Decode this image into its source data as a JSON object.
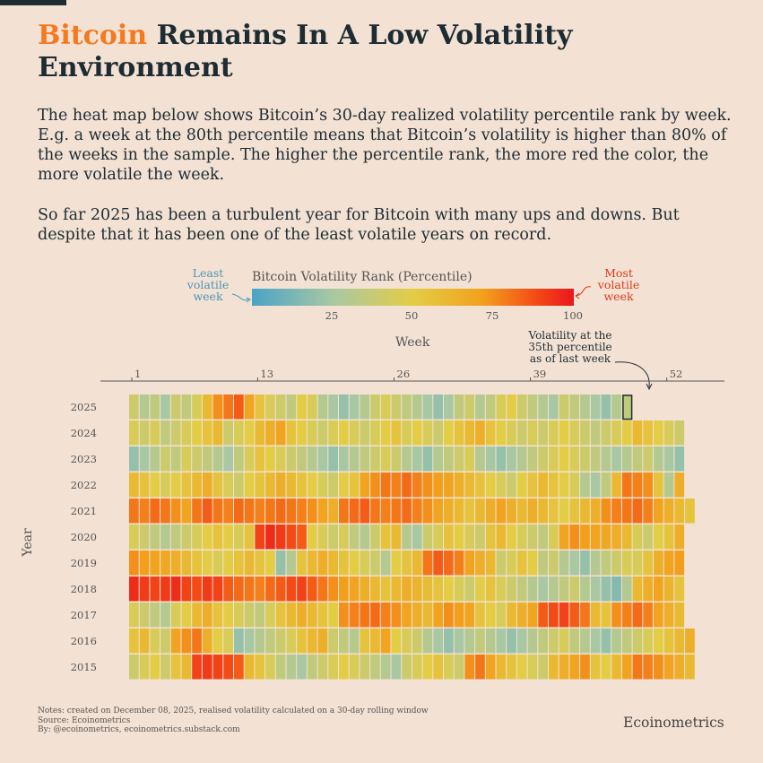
{
  "header": {
    "title_highlight": "Bitcoin",
    "title_rest": "Remains In A Low Volatility Environment",
    "description_1": "The heat map below shows Bitcoin’s 30-day realized volatility percentile rank by week. E.g. a week at the 80th percentile means that Bitcoin’s volatility is higher than 80% of the weeks in the sample. The higher the percentile rank, the more red the color, the more volatile the week.",
    "description_2": "So far 2025 has been a turbulent year for Bitcoin with many ups and downs. But despite that it has been one of the least volatile years on record.",
    "highlight_color": "#f47a1f"
  },
  "legend": {
    "title": "Bitcoin Volatility Rank (Percentile)",
    "ticks": [
      "25",
      "50",
      "75",
      "100"
    ],
    "least_label": "Least volatile week",
    "most_label": "Most volatile week",
    "low_color": "#4aa3c7",
    "high_color": "#e8171b"
  },
  "annotation": {
    "text": "Volatility at the 35th percentile as of last week",
    "week": 48,
    "year": "2025",
    "value": 35
  },
  "chart_data": {
    "type": "heatmap",
    "xlabel": "Week",
    "ylabel": "Year",
    "x_ticks": [
      1,
      13,
      26,
      39,
      52
    ],
    "x_range": [
      1,
      53
    ],
    "value_range": [
      0,
      100
    ],
    "years": [
      "2025",
      "2024",
      "2023",
      "2022",
      "2021",
      "2020",
      "2019",
      "2018",
      "2017",
      "2016",
      "2015"
    ],
    "weeks_available": [
      48,
      53,
      53,
      53,
      54,
      53,
      53,
      53,
      53,
      54,
      54
    ],
    "values": [
      [
        40,
        30,
        35,
        25,
        40,
        35,
        45,
        60,
        75,
        80,
        85,
        70,
        55,
        45,
        40,
        35,
        50,
        45,
        30,
        25,
        20,
        25,
        30,
        40,
        45,
        40,
        35,
        30,
        25,
        20,
        25,
        35,
        40,
        30,
        35,
        45,
        50,
        40,
        35,
        30,
        25,
        40,
        35,
        30,
        25,
        20,
        30,
        35
      ],
      [
        45,
        40,
        45,
        35,
        40,
        45,
        50,
        55,
        60,
        40,
        45,
        50,
        60,
        65,
        70,
        55,
        50,
        45,
        40,
        45,
        50,
        45,
        40,
        45,
        50,
        55,
        45,
        50,
        45,
        40,
        50,
        55,
        60,
        65,
        55,
        50,
        45,
        40,
        45,
        40,
        45,
        50,
        45,
        40,
        35,
        40,
        45,
        50,
        60,
        55,
        50,
        45,
        40
      ],
      [
        20,
        25,
        30,
        40,
        35,
        45,
        40,
        35,
        30,
        25,
        35,
        45,
        55,
        50,
        45,
        40,
        35,
        30,
        25,
        20,
        25,
        30,
        35,
        40,
        45,
        40,
        30,
        25,
        20,
        30,
        35,
        40,
        45,
        30,
        25,
        20,
        25,
        30,
        35,
        40,
        45,
        50,
        45,
        40,
        35,
        30,
        25,
        30,
        35,
        40,
        30,
        25,
        20
      ],
      [
        60,
        55,
        50,
        45,
        50,
        55,
        60,
        65,
        55,
        45,
        40,
        50,
        55,
        60,
        65,
        60,
        55,
        50,
        45,
        40,
        50,
        55,
        70,
        75,
        80,
        78,
        82,
        78,
        75,
        72,
        70,
        65,
        60,
        55,
        50,
        45,
        40,
        50,
        55,
        60,
        55,
        50,
        45,
        30,
        25,
        35,
        60,
        80,
        78,
        75,
        55,
        30,
        65
      ],
      [
        80,
        78,
        82,
        80,
        75,
        70,
        80,
        85,
        80,
        78,
        82,
        80,
        78,
        80,
        82,
        80,
        78,
        75,
        70,
        65,
        80,
        82,
        85,
        80,
        78,
        80,
        82,
        78,
        75,
        70,
        65,
        60,
        55,
        60,
        65,
        70,
        65,
        60,
        65,
        60,
        55,
        50,
        55,
        60,
        65,
        75,
        78,
        80,
        82,
        78,
        70,
        65,
        60,
        55
      ],
      [
        45,
        40,
        35,
        30,
        35,
        40,
        45,
        50,
        55,
        50,
        45,
        55,
        90,
        95,
        92,
        88,
        85,
        50,
        45,
        40,
        45,
        35,
        30,
        40,
        55,
        60,
        30,
        25,
        40,
        45,
        55,
        50,
        45,
        40,
        55,
        60,
        50,
        45,
        40,
        35,
        45,
        70,
        75,
        72,
        70,
        68,
        65,
        60,
        45,
        40,
        50,
        55,
        65
      ],
      [
        75,
        72,
        70,
        68,
        65,
        60,
        55,
        50,
        45,
        50,
        55,
        60,
        55,
        50,
        20,
        30,
        55,
        60,
        65,
        60,
        55,
        50,
        45,
        40,
        30,
        50,
        55,
        60,
        80,
        85,
        82,
        78,
        70,
        65,
        60,
        40,
        45,
        55,
        50,
        35,
        40,
        30,
        25,
        20,
        30,
        35,
        40,
        45,
        45,
        55,
        65,
        70,
        72
      ],
      [
        95,
        92,
        90,
        92,
        95,
        90,
        88,
        92,
        90,
        85,
        82,
        80,
        78,
        82,
        85,
        88,
        90,
        85,
        80,
        75,
        72,
        70,
        65,
        60,
        55,
        60,
        65,
        62,
        58,
        55,
        50,
        45,
        40,
        50,
        55,
        45,
        40,
        35,
        30,
        25,
        30,
        35,
        40,
        30,
        25,
        20,
        15,
        30,
        60,
        65,
        70,
        62,
        55
      ],
      [
        45,
        40,
        35,
        30,
        45,
        50,
        60,
        65,
        55,
        50,
        45,
        40,
        35,
        45,
        55,
        60,
        65,
        60,
        55,
        50,
        75,
        78,
        80,
        82,
        78,
        75,
        70,
        65,
        60,
        70,
        75,
        72,
        70,
        55,
        50,
        45,
        60,
        65,
        70,
        85,
        88,
        90,
        85,
        80,
        60,
        55,
        75,
        78,
        82,
        78,
        70,
        65,
        60
      ],
      [
        55,
        60,
        45,
        40,
        70,
        75,
        80,
        65,
        50,
        45,
        20,
        25,
        30,
        35,
        40,
        45,
        55,
        60,
        65,
        40,
        35,
        30,
        55,
        60,
        70,
        50,
        45,
        40,
        30,
        25,
        20,
        25,
        30,
        35,
        30,
        25,
        20,
        25,
        30,
        35,
        40,
        45,
        35,
        30,
        25,
        20,
        30,
        35,
        40,
        45,
        50,
        55,
        60,
        65
      ],
      [
        40,
        45,
        50,
        40,
        55,
        60,
        90,
        92,
        90,
        88,
        85,
        60,
        55,
        45,
        35,
        30,
        25,
        35,
        40,
        45,
        50,
        45,
        40,
        35,
        30,
        25,
        40,
        45,
        50,
        55,
        45,
        40,
        75,
        80,
        70,
        60,
        55,
        50,
        45,
        40,
        60,
        65,
        70,
        75,
        55,
        50,
        60,
        70,
        80,
        78,
        75,
        70,
        65,
        60
      ]
    ]
  },
  "footer": {
    "notes": "Notes: created on December 08, 2025, realised volatility calculated on a 30-day rolling window",
    "source": "Source: Ecoinometrics",
    "by": "By: @ecoinometrics, ecoinometrics.substack.com",
    "brand": "Ecoinometrics"
  }
}
